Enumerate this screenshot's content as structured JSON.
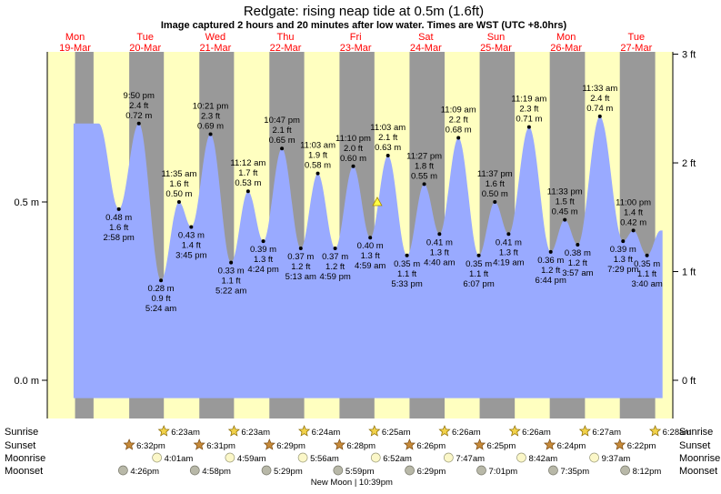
{
  "header": {
    "title": "Redgate: rising  neap tide at 0.5m (1.6ft)",
    "subtitle": "Image captured 2 hours and 20 minutes after low water. Times are WST (UTC +8.0hrs)"
  },
  "days": [
    {
      "day": "Mon",
      "date": "19-Mar"
    },
    {
      "day": "Tue",
      "date": "20-Mar"
    },
    {
      "day": "Wed",
      "date": "21-Mar"
    },
    {
      "day": "Thu",
      "date": "22-Mar"
    },
    {
      "day": "Fri",
      "date": "23-Mar"
    },
    {
      "day": "Sat",
      "date": "24-Mar"
    },
    {
      "day": "Sun",
      "date": "25-Mar"
    },
    {
      "day": "Mon",
      "date": "26-Mar"
    },
    {
      "day": "Tue",
      "date": "27-Mar"
    }
  ],
  "axes": {
    "left_ticks": [
      {
        "label": "0.5 m",
        "m": 0.5
      },
      {
        "label": "0.0 m",
        "m": 0.0
      }
    ],
    "right_ticks": [
      {
        "label": "3 ft",
        "m": 0.9144
      },
      {
        "label": "2 ft",
        "m": 0.6096
      },
      {
        "label": "1 ft",
        "m": 0.3048
      },
      {
        "label": "0 ft",
        "m": 0.0
      }
    ]
  },
  "chart_data": {
    "type": "area",
    "title": "Redgate: rising  neap tide at 0.5m (1.6ft)",
    "x_unit": "hours from Mon 19-Mar 00:00 WST",
    "ylim_m": [
      -0.05,
      0.92
    ],
    "tides": [
      {
        "t": 14.97,
        "m": 0.48,
        "time": "2:58 pm",
        "ft": "1.6 ft",
        "m_label": "0.48 m",
        "type": "low"
      },
      {
        "t": 21.83,
        "m": 0.72,
        "time": "9:50 pm",
        "ft": "2.4 ft",
        "m_label": "0.72 m",
        "type": "high"
      },
      {
        "t": 29.4,
        "m": 0.28,
        "time": "5:24 am",
        "ft": "0.9 ft",
        "m_label": "0.28 m",
        "type": "low"
      },
      {
        "t": 35.58,
        "m": 0.5,
        "time": "11:35 am",
        "ft": "1.6 ft",
        "m_label": "0.50 m",
        "type": "high"
      },
      {
        "t": 39.75,
        "m": 0.43,
        "time": "3:45 pm",
        "ft": "1.4 ft",
        "m_label": "0.43 m",
        "type": "low"
      },
      {
        "t": 46.35,
        "m": 0.69,
        "time": "10:21 pm",
        "ft": "2.3 ft",
        "m_label": "0.69 m",
        "type": "high"
      },
      {
        "t": 53.37,
        "m": 0.33,
        "time": "5:22 am",
        "ft": "1.1 ft",
        "m_label": "0.33 m",
        "type": "low"
      },
      {
        "t": 59.2,
        "m": 0.53,
        "time": "11:12 am",
        "ft": "1.7 ft",
        "m_label": "0.53 m",
        "type": "high"
      },
      {
        "t": 64.4,
        "m": 0.39,
        "time": "4:24 pm",
        "ft": "1.3 ft",
        "m_label": "0.39 m",
        "type": "low"
      },
      {
        "t": 70.78,
        "m": 0.65,
        "time": "10:47 pm",
        "ft": "2.1 ft",
        "m_label": "0.65 m",
        "type": "high"
      },
      {
        "t": 77.22,
        "m": 0.37,
        "time": "5:13 am",
        "ft": "1.2 ft",
        "m_label": "0.37 m",
        "type": "low"
      },
      {
        "t": 83.05,
        "m": 0.58,
        "time": "11:03 am",
        "ft": "1.9 ft",
        "m_label": "0.58 m",
        "type": "high"
      },
      {
        "t": 88.98,
        "m": 0.37,
        "time": "4:59 pm",
        "ft": "1.2 ft",
        "m_label": "0.37 m",
        "type": "low"
      },
      {
        "t": 95.17,
        "m": 0.6,
        "time": "11:10 pm",
        "ft": "2.0 ft",
        "m_label": "0.60 m",
        "type": "high"
      },
      {
        "t": 100.98,
        "m": 0.4,
        "time": "4:59 am",
        "ft": "1.3 ft",
        "m_label": "0.40 m",
        "type": "low"
      },
      {
        "t": 107.05,
        "m": 0.63,
        "time": "11:03 am",
        "ft": "2.1 ft",
        "m_label": "0.63 m",
        "type": "high"
      },
      {
        "t": 113.55,
        "m": 0.35,
        "time": "5:33 pm",
        "ft": "1.1 ft",
        "m_label": "0.35 m",
        "type": "low"
      },
      {
        "t": 119.45,
        "m": 0.55,
        "time": "11:27 pm",
        "ft": "1.8 ft",
        "m_label": "0.55 m",
        "type": "high"
      },
      {
        "t": 124.67,
        "m": 0.41,
        "time": "4:40 am",
        "ft": "1.3 ft",
        "m_label": "0.41 m",
        "type": "low"
      },
      {
        "t": 131.15,
        "m": 0.68,
        "time": "11:09 am",
        "ft": "2.2 ft",
        "m_label": "0.68 m",
        "type": "high"
      },
      {
        "t": 138.12,
        "m": 0.35,
        "time": "6:07 pm",
        "ft": "1.1 ft",
        "m_label": "0.35 m",
        "type": "low"
      },
      {
        "t": 143.62,
        "m": 0.5,
        "time": "11:37 pm",
        "ft": "1.6 ft",
        "m_label": "0.50 m",
        "type": "high"
      },
      {
        "t": 148.32,
        "m": 0.41,
        "time": "4:19 am",
        "ft": "1.3 ft",
        "m_label": "0.41 m",
        "type": "low"
      },
      {
        "t": 155.32,
        "m": 0.71,
        "time": "11:19 am",
        "ft": "2.3 ft",
        "m_label": "0.71 m",
        "type": "high"
      },
      {
        "t": 162.73,
        "m": 0.36,
        "time": "6:44 pm",
        "ft": "1.2 ft",
        "m_label": "0.36 m",
        "type": "low"
      },
      {
        "t": 167.55,
        "m": 0.45,
        "time": "11:33 pm",
        "ft": "1.5 ft",
        "m_label": "0.45 m",
        "type": "high"
      },
      {
        "t": 171.95,
        "m": 0.38,
        "time": "3:57 am",
        "ft": "1.2 ft",
        "m_label": "0.38 m",
        "type": "low"
      },
      {
        "t": 179.55,
        "m": 0.74,
        "time": "11:33 am",
        "ft": "2.4 ft",
        "m_label": "0.74 m",
        "type": "high"
      },
      {
        "t": 187.48,
        "m": 0.39,
        "time": "7:29 pm",
        "ft": "1.3 ft",
        "m_label": "0.39 m",
        "type": "low"
      },
      {
        "t": 191.0,
        "m": 0.42,
        "time": "11:00 pm",
        "ft": "1.4 ft",
        "m_label": "0.42 m",
        "type": "high"
      },
      {
        "t": 195.67,
        "m": 0.35,
        "time": "3:40 am",
        "ft": "1.1 ft",
        "m_label": "0.35 m",
        "type": "low"
      }
    ],
    "current_marker": {
      "t": 103.4,
      "m": 0.5
    },
    "nights": [
      {
        "start": 0,
        "end": 6.33
      },
      {
        "start": 18.53,
        "end": 30.38
      },
      {
        "start": 42.52,
        "end": 54.38
      },
      {
        "start": 66.48,
        "end": 78.4
      },
      {
        "start": 90.47,
        "end": 102.42
      },
      {
        "start": 114.43,
        "end": 126.43
      },
      {
        "start": 138.42,
        "end": 150.43
      },
      {
        "start": 162.4,
        "end": 174.45
      },
      {
        "start": 186.37,
        "end": 198.47
      }
    ],
    "colors": {
      "day": "#ffffc0",
      "night": "#999999",
      "tide": "#99aaff",
      "axis": "#000000",
      "date_text": "#ff0000"
    }
  },
  "sun_moon": {
    "labels": {
      "sunrise": "Sunrise",
      "sunset": "Sunset",
      "moonrise": "Moonrise",
      "moonset": "Moonset"
    },
    "sunrise": [
      {
        "t": 30.38,
        "text": "6:23am"
      },
      {
        "t": 54.38,
        "text": "6:23am"
      },
      {
        "t": 78.4,
        "text": "6:24am"
      },
      {
        "t": 102.42,
        "text": "6:25am"
      },
      {
        "t": 126.43,
        "text": "6:26am"
      },
      {
        "t": 150.43,
        "text": "6:26am"
      },
      {
        "t": 174.45,
        "text": "6:27am"
      },
      {
        "t": 198.47,
        "text": "6:28am"
      }
    ],
    "sunset": [
      {
        "t": 18.53,
        "text": "6:32pm"
      },
      {
        "t": 42.52,
        "text": "6:31pm"
      },
      {
        "t": 66.48,
        "text": "6:29pm"
      },
      {
        "t": 90.47,
        "text": "6:28pm"
      },
      {
        "t": 114.43,
        "text": "6:26pm"
      },
      {
        "t": 138.42,
        "text": "6:25pm"
      },
      {
        "t": 162.4,
        "text": "6:24pm"
      },
      {
        "t": 186.37,
        "text": "6:22pm"
      }
    ],
    "moonrise": [
      {
        "t": 28.02,
        "text": "4:01am"
      },
      {
        "t": 52.98,
        "text": "4:59am"
      },
      {
        "t": 77.93,
        "text": "5:56am"
      },
      {
        "t": 102.87,
        "text": "6:52am"
      },
      {
        "t": 127.78,
        "text": "7:47am"
      },
      {
        "t": 152.7,
        "text": "8:42am"
      },
      {
        "t": 177.62,
        "text": "9:37am"
      }
    ],
    "moonset": [
      {
        "t": 16.43,
        "text": "4:26pm"
      },
      {
        "t": 40.97,
        "text": "4:58pm"
      },
      {
        "t": 65.48,
        "text": "5:29pm"
      },
      {
        "t": 89.98,
        "text": "5:59pm"
      },
      {
        "t": 114.48,
        "text": "6:29pm"
      },
      {
        "t": 139.02,
        "text": "7:01pm"
      },
      {
        "t": 163.58,
        "text": "7:35pm"
      },
      {
        "t": 188.2,
        "text": "8:12pm"
      }
    ],
    "moon_phase": {
      "t": 94.65,
      "text": "New Moon | 10:39pm"
    }
  }
}
